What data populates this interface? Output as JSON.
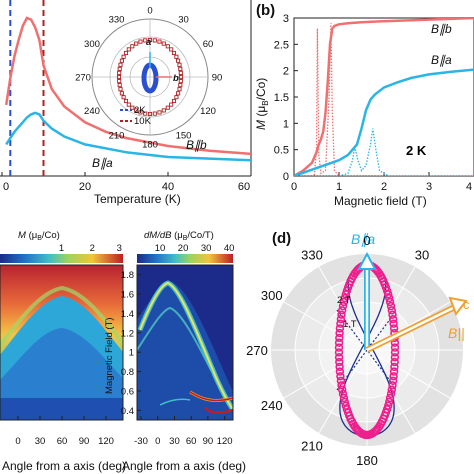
{
  "colors": {
    "b_axis": "#f07070",
    "a_axis": "#2bb5e6",
    "pink": "#ee1f8c",
    "navy": "#1c2f8f",
    "orange": "#f0a030",
    "dark_red": "#b02020",
    "blue_dash": "#2a4fd0"
  },
  "chart_data": [
    {
      "id": "a",
      "type": "line",
      "xlabel": "Temperature (K)",
      "ylabel": "",
      "xlim": [
        0,
        60
      ],
      "x_ticks": [
        "0",
        "20",
        "40",
        "60"
      ],
      "series": [
        {
          "name": "B||b",
          "label_base": "B",
          "label_sub": "b",
          "x": [
            1,
            2,
            3,
            4,
            5,
            6,
            7,
            8,
            9,
            10,
            12,
            15,
            20,
            25,
            30,
            40,
            50,
            60
          ],
          "y": [
            0.45,
            0.62,
            0.76,
            0.86,
            0.95,
            1.0,
            0.99,
            0.94,
            0.86,
            0.7,
            0.55,
            0.44,
            0.34,
            0.28,
            0.24,
            0.19,
            0.16,
            0.14
          ]
        },
        {
          "name": "B||a",
          "label_base": "B",
          "label_sub": "a",
          "x": [
            1,
            2,
            3,
            4,
            5,
            6,
            7,
            8,
            9,
            10,
            12,
            15,
            20,
            30,
            40,
            50,
            60
          ],
          "y": [
            0.2,
            0.24,
            0.28,
            0.31,
            0.34,
            0.37,
            0.39,
            0.4,
            0.39,
            0.35,
            0.3,
            0.25,
            0.2,
            0.15,
            0.12,
            0.11,
            0.1
          ]
        }
      ],
      "markers": [
        {
          "x": 2,
          "style": "blue-dash"
        },
        {
          "x": 10,
          "style": "red-dash"
        }
      ],
      "inset": {
        "type": "polar",
        "angle_labels": [
          "330",
          "0",
          "30",
          "60",
          "90",
          "120",
          "150",
          "180",
          "210",
          "240",
          "270",
          "300"
        ],
        "axis_a": "a",
        "axis_b": "b",
        "legend": [
          {
            "label": "2K",
            "color": "#2a4fd0"
          },
          {
            "label": "10K",
            "color": "#b02020"
          }
        ]
      }
    },
    {
      "id": "b",
      "type": "line",
      "panel_label": "(b)",
      "xlabel": "Magnetic field (T)",
      "ylabel_main": "M",
      "ylabel_unit": "(μ",
      "ylabel_sub": "B",
      "ylabel_tail": "/Co)",
      "xlim": [
        0,
        4
      ],
      "ylim": [
        0,
        3
      ],
      "x_ticks": [
        "0",
        "1",
        "2",
        "3",
        "4"
      ],
      "y_ticks": [
        "0",
        "0.5",
        "1",
        "1.5",
        "2",
        "2.5",
        "3"
      ],
      "annotation": "2 K",
      "series": [
        {
          "name": "B||b",
          "label_base": "B",
          "label_sub": "b",
          "x": [
            0,
            0.2,
            0.4,
            0.5,
            0.55,
            0.6,
            0.65,
            0.7,
            0.75,
            0.8,
            0.85,
            0.9,
            1.0,
            1.2,
            1.5,
            2.0,
            3.0,
            4.0
          ],
          "y": [
            0,
            0.1,
            0.25,
            0.45,
            0.6,
            0.7,
            0.85,
            1.2,
            1.8,
            2.5,
            2.8,
            2.85,
            2.88,
            2.9,
            2.92,
            2.94,
            2.97,
            3.0
          ]
        },
        {
          "name": "B||a",
          "label_base": "B",
          "label_sub": "a",
          "x": [
            0,
            0.5,
            1.0,
            1.2,
            1.4,
            1.5,
            1.6,
            1.7,
            1.8,
            2.0,
            2.3,
            2.6,
            3.0,
            3.5,
            4.0
          ],
          "y": [
            0,
            0.15,
            0.3,
            0.4,
            0.6,
            0.9,
            1.25,
            1.45,
            1.55,
            1.68,
            1.78,
            1.86,
            1.93,
            1.98,
            2.02
          ]
        },
        {
          "name": "dM/dB b",
          "style": "dotted",
          "x": [
            0,
            0.45,
            0.5,
            0.52,
            0.55,
            0.6,
            0.7,
            0.78,
            0.82,
            0.85,
            0.9,
            1.0,
            4.0
          ],
          "y": [
            0,
            0,
            0.5,
            2.8,
            0.4,
            0.05,
            0.1,
            1.5,
            2.9,
            1.2,
            0.1,
            0,
            0
          ]
        },
        {
          "name": "dM/dB a",
          "style": "dotted",
          "x": [
            0,
            1.0,
            1.2,
            1.3,
            1.35,
            1.42,
            1.5,
            1.6,
            1.7,
            1.75,
            1.82,
            1.9,
            2.1,
            4.0
          ],
          "y": [
            0,
            0,
            0.05,
            0.3,
            0.55,
            0.3,
            0.1,
            0.2,
            0.6,
            0.9,
            0.5,
            0.1,
            0,
            0
          ]
        }
      ]
    },
    {
      "id": "c1",
      "type": "heatmap",
      "colorbar_label_main": "M",
      "colorbar_label_unit": "(μ",
      "colorbar_label_sub": "B",
      "colorbar_label_tail": "/Co)",
      "colorbar_ticks": [
        "1",
        "2",
        "3"
      ],
      "xlabel": "Angle from a axis (deg)",
      "x_ticks": [
        "0",
        "30",
        "60",
        "90",
        "120"
      ]
    },
    {
      "id": "c2",
      "type": "heatmap",
      "colorbar_label_main": "dM/dB",
      "colorbar_label_unit": "(μ",
      "colorbar_label_sub": "B",
      "colorbar_label_tail": "/Co/T)",
      "colorbar_ticks": [
        "10",
        "20",
        "30",
        "40"
      ],
      "ylabel": "Magnetic Field (T)",
      "y_ticks": [
        "0.4",
        "0.6",
        "0.8",
        "1",
        "1.2",
        "1.4",
        "1.6",
        "1.8"
      ],
      "xlabel": "Angle from a axis (deg)",
      "x_ticks": [
        "-30",
        "0",
        "30",
        "60",
        "90",
        "120"
      ]
    },
    {
      "id": "d",
      "type": "polar",
      "panel_label": "(d)",
      "angle_labels": [
        "0",
        "30",
        "300",
        "270",
        "240",
        "210",
        "180",
        "330"
      ],
      "radial_labels": [
        "2 T",
        "1 T"
      ],
      "arrow_a_base": "B",
      "arrow_a_sub": "a",
      "arrow_b_label": "B||"
    }
  ]
}
